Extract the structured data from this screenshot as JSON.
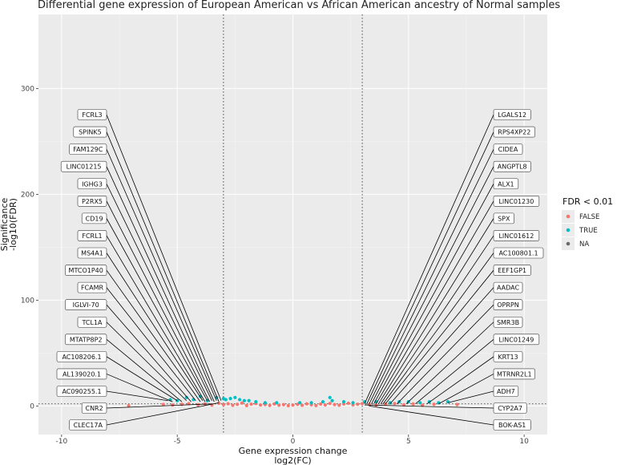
{
  "chart_data": {
    "type": "scatter",
    "title": "Differential gene expression of European American vs African American ancestry of Normal samples",
    "xlabel_line1": "Gene expression change",
    "xlabel_line2": "log2(FC)",
    "ylabel_line1": "Significance",
    "ylabel_line2": "-log10(FDR)",
    "xlim": [
      -11,
      11
    ],
    "ylim": [
      -27,
      370
    ],
    "x_ticks": [
      -10,
      -5,
      0,
      5,
      10
    ],
    "x_tick_labels": [
      "-10",
      "-5",
      "0",
      "5",
      "10"
    ],
    "y_ticks": [
      0,
      100,
      200,
      300
    ],
    "y_tick_labels": [
      "0",
      "100",
      "200",
      "300"
    ],
    "fc_thresholds": [
      -3,
      3
    ],
    "fdr_threshold_y": 2,
    "grid": true,
    "legend": {
      "title": "FDR < 0.01",
      "position": "right",
      "items": [
        {
          "label": "FALSE",
          "color": "#F8766D"
        },
        {
          "label": "TRUE",
          "color": "#00BFC4"
        },
        {
          "label": "NA",
          "color": "#6b6b6b"
        }
      ]
    },
    "series": [
      {
        "name": "FALSE",
        "color": "#F8766D",
        "points": [
          [
            -7.1,
            0.3
          ],
          [
            -5.6,
            1.4
          ],
          [
            -5.2,
            0.9
          ],
          [
            -4.8,
            1.6
          ],
          [
            -4.5,
            2.2
          ],
          [
            -4.1,
            1.1
          ],
          [
            -3.8,
            1.9
          ],
          [
            -3.5,
            0.8
          ],
          [
            -3.2,
            2.5
          ],
          [
            -3.0,
            1.2
          ],
          [
            -2.8,
            2.1
          ],
          [
            -2.6,
            0.6
          ],
          [
            -2.4,
            1.5
          ],
          [
            -2.2,
            2.8
          ],
          [
            -2.0,
            0.4
          ],
          [
            -1.8,
            1.7
          ],
          [
            -1.6,
            2.3
          ],
          [
            -1.4,
            0.9
          ],
          [
            -1.2,
            1.3
          ],
          [
            -1.0,
            0.5
          ],
          [
            -0.8,
            1.9
          ],
          [
            -0.6,
            0.7
          ],
          [
            -0.4,
            1.2
          ],
          [
            -0.2,
            0.3
          ],
          [
            0.0,
            0.8
          ],
          [
            0.2,
            1.5
          ],
          [
            0.4,
            0.6
          ],
          [
            0.6,
            2.0
          ],
          [
            0.8,
            1.1
          ],
          [
            1.0,
            0.4
          ],
          [
            1.2,
            1.8
          ],
          [
            1.4,
            0.9
          ],
          [
            1.6,
            2.4
          ],
          [
            1.8,
            1.3
          ],
          [
            2.0,
            0.7
          ],
          [
            2.2,
            1.9
          ],
          [
            2.4,
            2.6
          ],
          [
            2.6,
            1.0
          ],
          [
            2.8,
            1.6
          ],
          [
            3.0,
            2.2
          ],
          [
            3.3,
            1.4
          ],
          [
            3.6,
            0.9
          ],
          [
            4.0,
            1.8
          ],
          [
            4.4,
            2.3
          ],
          [
            4.8,
            1.1
          ],
          [
            5.2,
            1.9
          ],
          [
            5.6,
            0.8
          ],
          [
            6.1,
            1.6
          ],
          [
            7.1,
            1.3
          ]
        ]
      },
      {
        "name": "TRUE",
        "color": "#00BFC4",
        "points": [
          [
            -5.3,
            6
          ],
          [
            -5.0,
            5
          ],
          [
            -4.6,
            8
          ],
          [
            -4.3,
            6
          ],
          [
            -4.0,
            9
          ],
          [
            -3.7,
            5
          ],
          [
            -3.3,
            8
          ],
          [
            -3.0,
            7
          ],
          [
            -2.9,
            6
          ],
          [
            -2.7,
            7
          ],
          [
            -2.5,
            8
          ],
          [
            -2.3,
            6
          ],
          [
            -2.1,
            5
          ],
          [
            -1.9,
            5
          ],
          [
            -1.6,
            4
          ],
          [
            -1.2,
            3
          ],
          [
            -0.7,
            3
          ],
          [
            0.3,
            3
          ],
          [
            0.8,
            3
          ],
          [
            1.3,
            4
          ],
          [
            1.7,
            5
          ],
          [
            1.6,
            8
          ],
          [
            2.2,
            4
          ],
          [
            2.6,
            3
          ],
          [
            3.1,
            4
          ],
          [
            3.6,
            4
          ],
          [
            4.2,
            3
          ],
          [
            4.6,
            4
          ],
          [
            5.0,
            4
          ],
          [
            5.5,
            3
          ],
          [
            5.9,
            4
          ],
          [
            6.3,
            3
          ],
          [
            6.7,
            4
          ]
        ]
      }
    ],
    "labels_left": [
      {
        "text": "FCRL3",
        "x": -3.1,
        "y": 5
      },
      {
        "text": "SPINK5",
        "x": -3.2,
        "y": 4
      },
      {
        "text": "FAM129C",
        "x": -3.3,
        "y": 5
      },
      {
        "text": "LINC01215",
        "x": -3.4,
        "y": 4
      },
      {
        "text": "IGHG3",
        "x": -3.5,
        "y": 5
      },
      {
        "text": "P2RX5",
        "x": -3.6,
        "y": 4
      },
      {
        "text": "CD19",
        "x": -3.7,
        "y": 5
      },
      {
        "text": "FCRL1",
        "x": -3.8,
        "y": 4
      },
      {
        "text": "MS4A1",
        "x": -3.9,
        "y": 5
      },
      {
        "text": "MTCO1P40",
        "x": -4.0,
        "y": 4
      },
      {
        "text": "FCAMR",
        "x": -4.2,
        "y": 5
      },
      {
        "text": "IGLVI-70",
        "x": -4.4,
        "y": 4
      },
      {
        "text": "TCL1A",
        "x": -4.6,
        "y": 5
      },
      {
        "text": "MTATP8P2",
        "x": -4.8,
        "y": 4
      },
      {
        "text": "AC108206.1",
        "x": -5.0,
        "y": 5
      },
      {
        "text": "AL139020.1",
        "x": -5.2,
        "y": 4
      },
      {
        "text": "AC090255.1",
        "x": -5.4,
        "y": 5
      },
      {
        "text": "CNR2",
        "x": -3.5,
        "y": 2
      },
      {
        "text": "CLEC17A",
        "x": -3.2,
        "y": 3
      }
    ],
    "labels_right": [
      {
        "text": "LGALS12",
        "x": 3.1,
        "y": 2
      },
      {
        "text": "RPS4XP22",
        "x": 3.2,
        "y": 2
      },
      {
        "text": "CIDEA",
        "x": 3.3,
        "y": 2
      },
      {
        "text": "ANGPTL8",
        "x": 3.4,
        "y": 2
      },
      {
        "text": "ALX1",
        "x": 3.5,
        "y": 2
      },
      {
        "text": "LINC01230",
        "x": 3.6,
        "y": 2
      },
      {
        "text": "SPX",
        "x": 3.7,
        "y": 2
      },
      {
        "text": "LINC01612",
        "x": 3.8,
        "y": 2
      },
      {
        "text": "AC100801.1",
        "x": 3.9,
        "y": 2
      },
      {
        "text": "EEF1GP1",
        "x": 4.0,
        "y": 2
      },
      {
        "text": "AADAC",
        "x": 4.2,
        "y": 2
      },
      {
        "text": "OPRPN",
        "x": 4.5,
        "y": 2
      },
      {
        "text": "SMR3B",
        "x": 4.9,
        "y": 2
      },
      {
        "text": "LINC01249",
        "x": 5.3,
        "y": 2
      },
      {
        "text": "KRT13",
        "x": 5.8,
        "y": 2
      },
      {
        "text": "MTRNR2L1",
        "x": 6.3,
        "y": 2
      },
      {
        "text": "ADH7",
        "x": 6.7,
        "y": 3
      },
      {
        "text": "CYP2A7",
        "x": 3.1,
        "y": 1
      },
      {
        "text": "BOK-AS1",
        "x": 3.3,
        "y": 0
      }
    ]
  }
}
